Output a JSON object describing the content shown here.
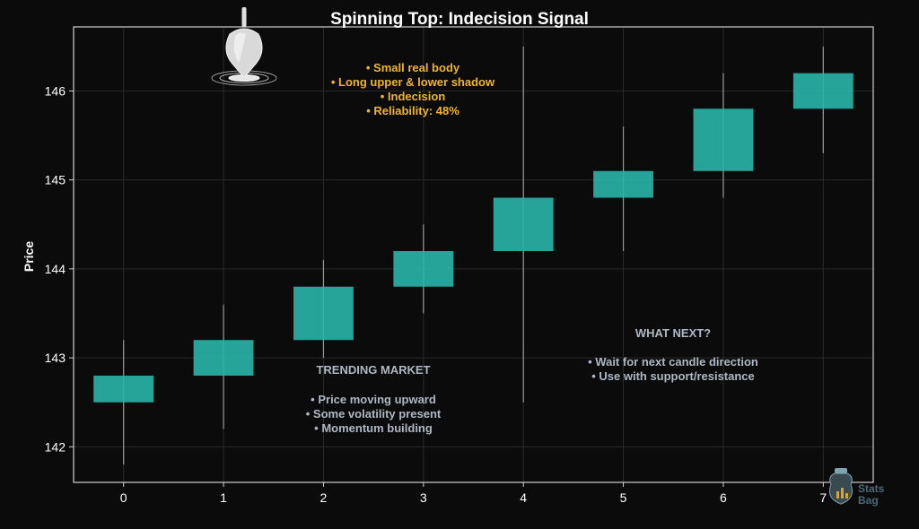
{
  "chart_data": {
    "type": "candlestick",
    "title": "Spinning Top: Indecision Signal",
    "ylabel": "Price",
    "xlabel": "",
    "x_ticks": [
      "0",
      "1",
      "2",
      "3",
      "4",
      "5",
      "6",
      "7"
    ],
    "y_ticks": [
      142,
      143,
      144,
      145,
      146
    ],
    "ylim": [
      141.6,
      146.72
    ],
    "xlim": [
      -0.5,
      7.5
    ],
    "grid": true,
    "candles": [
      {
        "x": 0,
        "open": 142.5,
        "high": 143.2,
        "low": 141.8,
        "close": 142.8
      },
      {
        "x": 1,
        "open": 142.8,
        "high": 143.6,
        "low": 142.2,
        "close": 143.2
      },
      {
        "x": 2,
        "open": 143.2,
        "high": 144.1,
        "low": 143.0,
        "close": 143.8
      },
      {
        "x": 3,
        "open": 143.8,
        "high": 144.5,
        "low": 143.5,
        "close": 144.2
      },
      {
        "x": 4,
        "open": 144.2,
        "high": 146.5,
        "low": 142.5,
        "close": 144.8
      },
      {
        "x": 5,
        "open": 144.8,
        "high": 145.6,
        "low": 144.2,
        "close": 145.1
      },
      {
        "x": 6,
        "open": 145.1,
        "high": 146.2,
        "low": 144.8,
        "close": 145.8
      },
      {
        "x": 7,
        "open": 145.8,
        "high": 146.5,
        "low": 145.3,
        "close": 146.2
      }
    ],
    "annotations": {
      "pattern_info": [
        "• Small real body",
        "• Long upper & lower shadow",
        "• Indecision",
        "• Reliability: 48%"
      ],
      "trend_title": "TRENDING MARKET",
      "trend_points": [
        "• Price moving upward",
        "• Some volatility present",
        "• Momentum building"
      ],
      "next_title": "WHAT NEXT?",
      "next_points": [
        "• Wait for next candle direction",
        "• Use with support/resistance"
      ]
    },
    "colors": {
      "background": "#0b0b0b",
      "candle_body": "#2ab5a8",
      "wick": "#9a9a9a",
      "info_text": "#f0b42a",
      "note_text": "#aeb8c4",
      "axes": "#d0d0d0",
      "grid": "#2a2a2a"
    }
  },
  "watermark": {
    "line1": "Stats",
    "line2": "Bag"
  }
}
